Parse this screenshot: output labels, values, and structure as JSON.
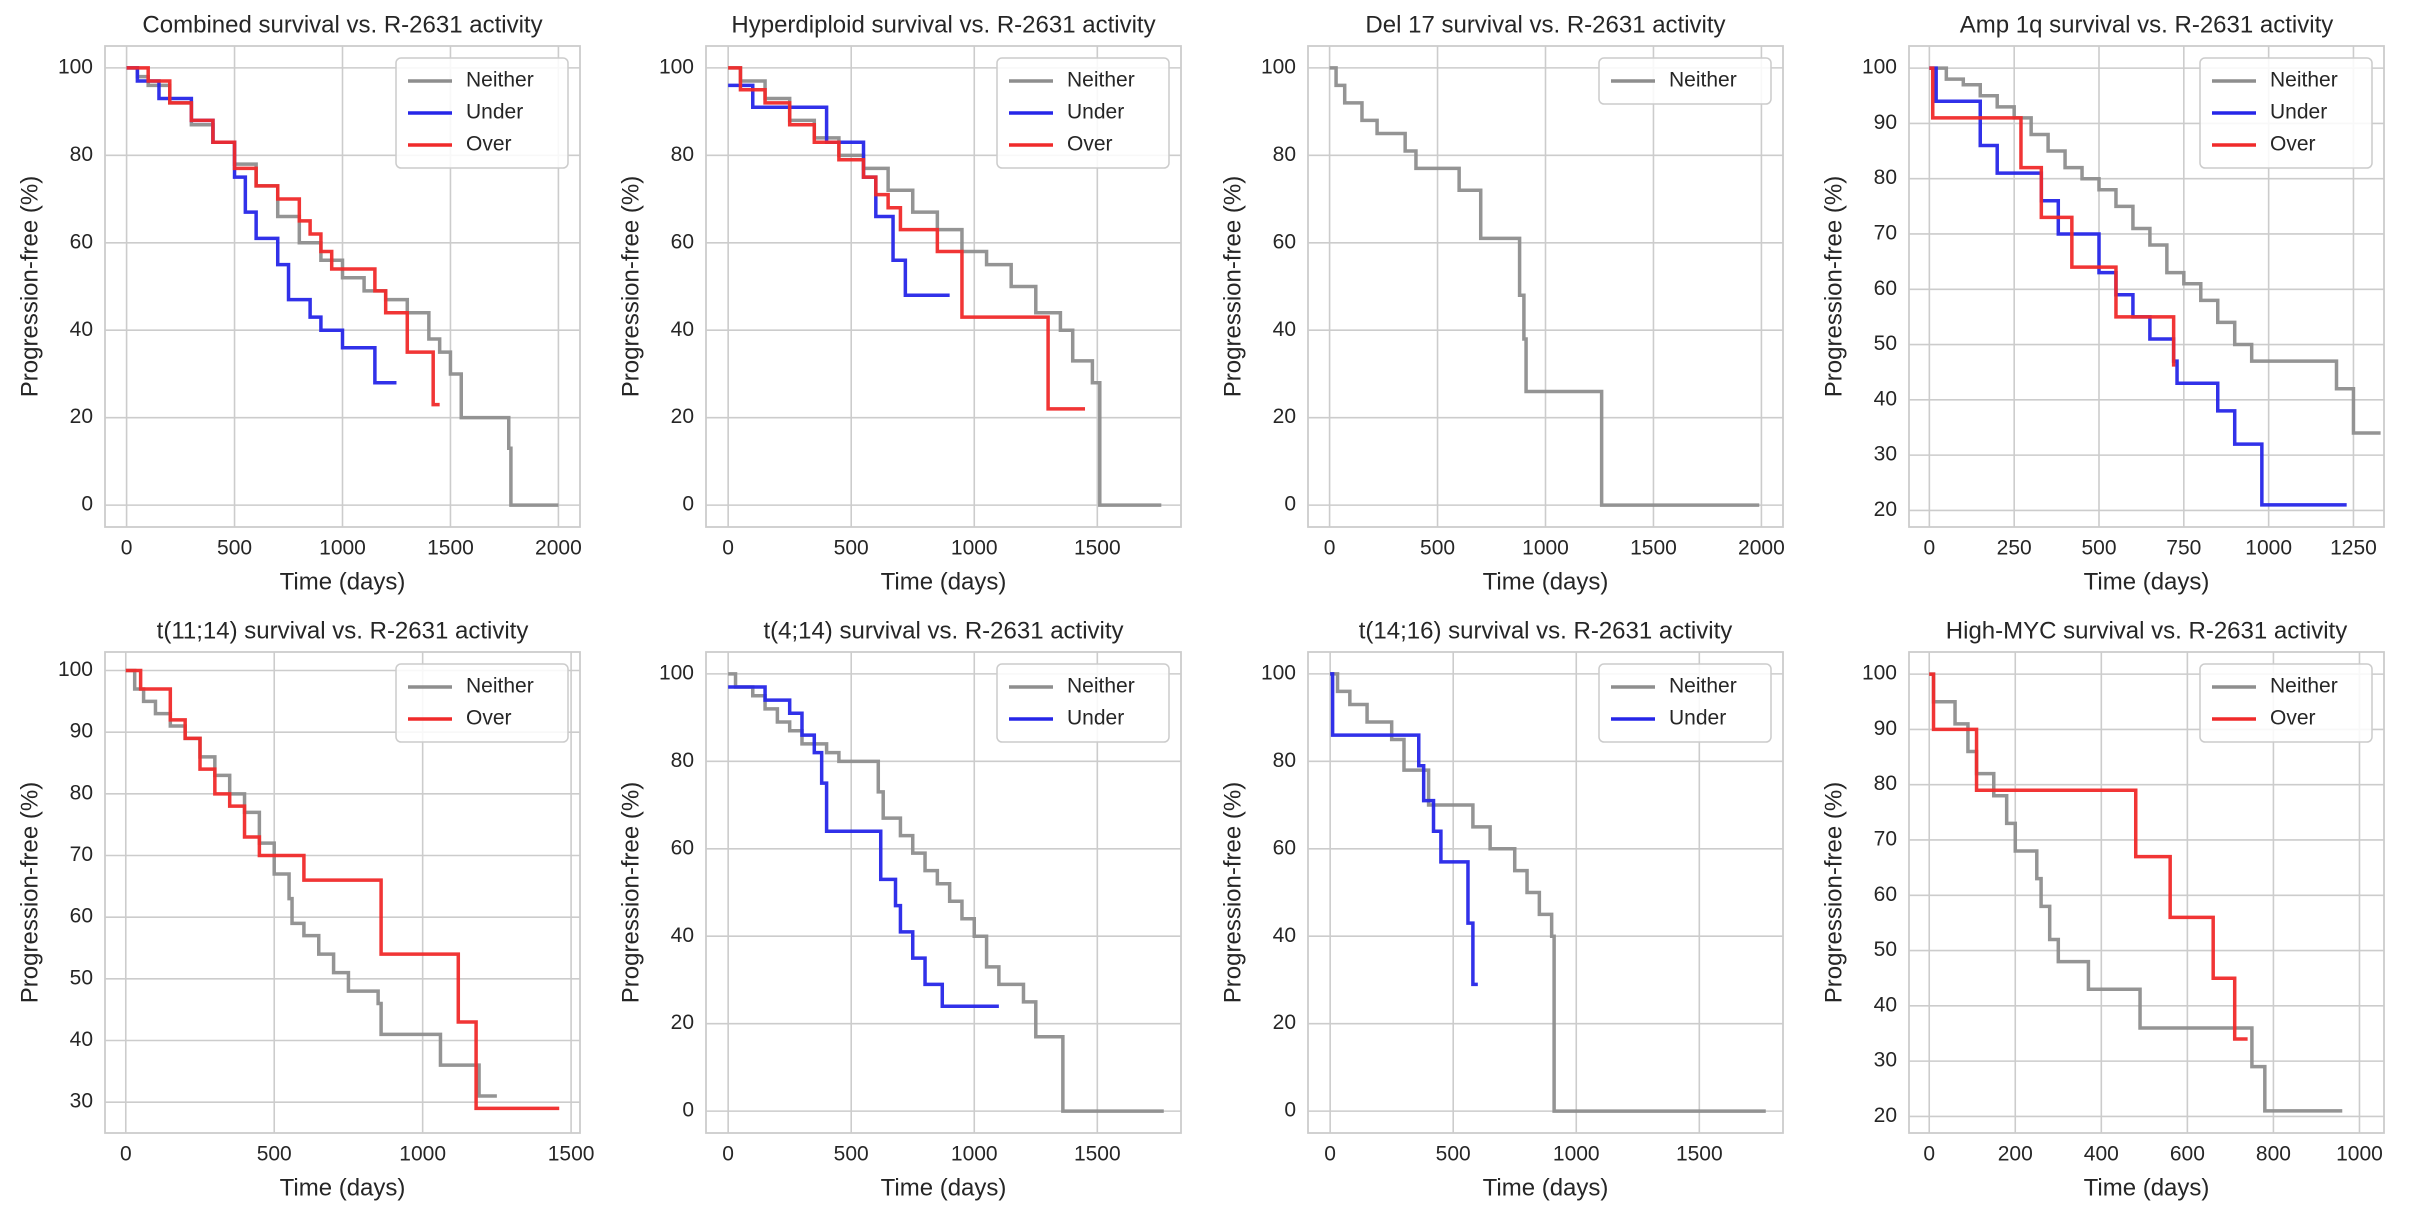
{
  "chart_data": [
    {
      "type": "step",
      "title": "Combined survival vs. R-2631 activity",
      "xlabel": "Time (days)",
      "ylabel": "Progression-free (%)",
      "xlim": [
        -100,
        2100
      ],
      "ylim": [
        -5,
        105
      ],
      "xticks": [
        0,
        500,
        1000,
        1500,
        2000
      ],
      "yticks": [
        0,
        20,
        40,
        60,
        80,
        100
      ],
      "grid": true,
      "legend": "upper right",
      "series": [
        {
          "name": "Neither",
          "color": "#8e8e8e",
          "x": [
            0,
            50,
            100,
            200,
            300,
            400,
            500,
            600,
            700,
            800,
            900,
            1000,
            1100,
            1200,
            1300,
            1400,
            1450,
            1500,
            1550,
            1770,
            1780,
            2000
          ],
          "values": [
            100,
            98,
            96,
            92,
            87,
            83,
            78,
            73,
            66,
            60,
            56,
            52,
            49,
            47,
            44,
            38,
            35,
            30,
            20,
            13,
            0,
            0
          ]
        },
        {
          "name": "Under",
          "color": "#2626e8",
          "x": [
            0,
            50,
            150,
            300,
            400,
            500,
            550,
            600,
            700,
            750,
            850,
            900,
            1000,
            1150,
            1250
          ],
          "values": [
            100,
            97,
            93,
            88,
            83,
            75,
            67,
            61,
            55,
            47,
            43,
            40,
            36,
            28,
            28
          ]
        },
        {
          "name": "Over",
          "color": "#f02a2a",
          "x": [
            0,
            100,
            200,
            300,
            400,
            500,
            600,
            700,
            800,
            850,
            900,
            950,
            1150,
            1200,
            1300,
            1420,
            1450
          ],
          "values": [
            100,
            97,
            92,
            88,
            83,
            77,
            73,
            70,
            65,
            62,
            58,
            54,
            49,
            44,
            35,
            23,
            23
          ]
        }
      ]
    },
    {
      "type": "step",
      "title": "Hyperdiploid survival vs. R-2631 activity",
      "xlabel": "Time (days)",
      "ylabel": "Progression-free (%)",
      "xlim": [
        -90,
        1840
      ],
      "ylim": [
        -5,
        105
      ],
      "xticks": [
        0,
        500,
        1000,
        1500
      ],
      "yticks": [
        0,
        20,
        40,
        60,
        80,
        100
      ],
      "grid": true,
      "legend": "upper right",
      "series": [
        {
          "name": "Neither",
          "color": "#8e8e8e",
          "x": [
            0,
            50,
            150,
            250,
            350,
            450,
            550,
            650,
            750,
            850,
            950,
            1050,
            1150,
            1250,
            1350,
            1400,
            1480,
            1510,
            1760
          ],
          "values": [
            100,
            97,
            93,
            88,
            84,
            80,
            77,
            72,
            67,
            63,
            58,
            55,
            50,
            44,
            40,
            33,
            28,
            0,
            0
          ]
        },
        {
          "name": "Under",
          "color": "#2626e8",
          "x": [
            0,
            100,
            400,
            550,
            600,
            670,
            720,
            900
          ],
          "values": [
            96,
            91,
            83,
            75,
            66,
            56,
            48,
            48
          ]
        },
        {
          "name": "Over",
          "color": "#f02a2a",
          "x": [
            0,
            50,
            150,
            250,
            350,
            450,
            550,
            600,
            650,
            700,
            850,
            950,
            1300,
            1450
          ],
          "values": [
            100,
            95,
            92,
            87,
            83,
            79,
            75,
            71,
            68,
            63,
            58,
            43,
            22,
            22
          ]
        }
      ]
    },
    {
      "type": "step",
      "title": "Del 17 survival vs. R-2631 activity",
      "xlabel": "Time (days)",
      "ylabel": "Progression-free (%)",
      "xlim": [
        -100,
        2100
      ],
      "ylim": [
        -5,
        105
      ],
      "xticks": [
        0,
        500,
        1000,
        1500,
        2000
      ],
      "yticks": [
        0,
        20,
        40,
        60,
        80,
        100
      ],
      "grid": true,
      "legend": "upper right",
      "series": [
        {
          "name": "Neither",
          "color": "#8e8e8e",
          "x": [
            0,
            30,
            70,
            150,
            220,
            350,
            400,
            600,
            700,
            850,
            880,
            900,
            910,
            1250,
            1260,
            1990
          ],
          "values": [
            100,
            96,
            92,
            88,
            85,
            81,
            77,
            72,
            61,
            61,
            48,
            38,
            26,
            26,
            0,
            0
          ]
        }
      ]
    },
    {
      "type": "step",
      "title": "Amp 1q survival vs. R-2631 activity",
      "xlabel": "Time (days)",
      "ylabel": "Progression-free (%)",
      "xlim": [
        -60,
        1340
      ],
      "ylim": [
        17,
        104
      ],
      "xticks": [
        0,
        250,
        500,
        750,
        1000,
        1250
      ],
      "yticks": [
        20,
        30,
        40,
        50,
        60,
        70,
        80,
        90,
        100
      ],
      "grid": true,
      "legend": "upper right",
      "series": [
        {
          "name": "Neither",
          "color": "#8e8e8e",
          "x": [
            0,
            50,
            100,
            150,
            200,
            250,
            300,
            350,
            400,
            450,
            500,
            550,
            600,
            650,
            700,
            750,
            800,
            850,
            900,
            950,
            1200,
            1240,
            1250,
            1330
          ],
          "values": [
            100,
            98,
            97,
            95,
            93,
            91,
            88,
            85,
            82,
            80,
            78,
            75,
            71,
            68,
            63,
            61,
            58,
            54,
            50,
            47,
            42,
            42,
            34,
            34
          ]
        },
        {
          "name": "Under",
          "color": "#2626e8",
          "x": [
            0,
            20,
            150,
            200,
            330,
            380,
            500,
            550,
            600,
            650,
            720,
            730,
            850,
            900,
            980,
            1230
          ],
          "values": [
            100,
            94,
            86,
            81,
            76,
            70,
            63,
            59,
            55,
            51,
            47,
            43,
            38,
            32,
            21,
            21
          ]
        },
        {
          "name": "Over",
          "color": "#f02a2a",
          "x": [
            0,
            10,
            270,
            330,
            420,
            550,
            720
          ],
          "values": [
            100,
            91,
            82,
            73,
            64,
            55,
            46
          ]
        }
      ]
    },
    {
      "type": "step",
      "title": "t(11;14) survival vs. R-2631 activity",
      "xlabel": "Time (days)",
      "ylabel": "Progression-free (%)",
      "xlim": [
        -70,
        1530
      ],
      "ylim": [
        25,
        103
      ],
      "xticks": [
        0,
        500,
        1000,
        1500
      ],
      "yticks": [
        30,
        40,
        50,
        60,
        70,
        80,
        90,
        100
      ],
      "grid": true,
      "legend": "upper right",
      "series": [
        {
          "name": "Neither",
          "color": "#8e8e8e",
          "x": [
            0,
            30,
            60,
            100,
            150,
            200,
            250,
            300,
            350,
            400,
            450,
            500,
            550,
            560,
            600,
            650,
            700,
            750,
            850,
            860,
            1060,
            1190,
            1250
          ],
          "values": [
            100,
            97,
            95,
            93,
            91,
            89,
            86,
            83,
            80,
            77,
            72,
            67,
            63,
            59,
            57,
            54,
            51,
            48,
            46,
            41,
            36,
            31,
            31
          ]
        },
        {
          "name": "Over",
          "color": "#f02a2a",
          "x": [
            0,
            50,
            150,
            200,
            250,
            300,
            350,
            400,
            450,
            600,
            860,
            1120,
            1180,
            1460
          ],
          "values": [
            100,
            97,
            92,
            89,
            84,
            80,
            78,
            73,
            70,
            66,
            54,
            43,
            29,
            29
          ]
        }
      ]
    },
    {
      "type": "step",
      "title": "t(4;14) survival vs. R-2631 activity",
      "xlabel": "Time (days)",
      "ylabel": "Progression-free (%)",
      "xlim": [
        -90,
        1840
      ],
      "ylim": [
        -5,
        105
      ],
      "xticks": [
        0,
        500,
        1000,
        1500
      ],
      "yticks": [
        0,
        20,
        40,
        60,
        80,
        100
      ],
      "grid": true,
      "legend": "upper right",
      "series": [
        {
          "name": "Neither",
          "color": "#8e8e8e",
          "x": [
            0,
            30,
            100,
            150,
            200,
            250,
            300,
            400,
            450,
            610,
            630,
            700,
            750,
            800,
            850,
            900,
            950,
            1000,
            1050,
            1100,
            1200,
            1250,
            1360,
            1770
          ],
          "values": [
            100,
            97,
            95,
            92,
            89,
            87,
            84,
            82,
            80,
            73,
            67,
            63,
            59,
            55,
            52,
            48,
            44,
            40,
            33,
            29,
            25,
            17,
            0,
            0
          ]
        },
        {
          "name": "Under",
          "color": "#2626e8",
          "x": [
            0,
            150,
            250,
            300,
            350,
            380,
            400,
            620,
            680,
            700,
            750,
            800,
            870,
            1100
          ],
          "values": [
            97,
            94,
            91,
            86,
            82,
            75,
            64,
            53,
            47,
            41,
            35,
            29,
            24,
            24
          ]
        }
      ]
    },
    {
      "type": "step",
      "title": "t(14;16) survival vs. R-2631 activity",
      "xlabel": "Time (days)",
      "ylabel": "Progression-free (%)",
      "xlim": [
        -90,
        1840
      ],
      "ylim": [
        -5,
        105
      ],
      "xticks": [
        0,
        500,
        1000,
        1500
      ],
      "yticks": [
        0,
        20,
        40,
        60,
        80,
        100
      ],
      "grid": true,
      "legend": "upper right",
      "series": [
        {
          "name": "Neither",
          "color": "#8e8e8e",
          "x": [
            0,
            30,
            80,
            150,
            250,
            300,
            400,
            580,
            650,
            750,
            800,
            850,
            900,
            910,
            1770
          ],
          "values": [
            100,
            96,
            93,
            89,
            85,
            78,
            70,
            65,
            60,
            55,
            50,
            45,
            40,
            0,
            0
          ]
        },
        {
          "name": "Under",
          "color": "#2626e8",
          "x": [
            0,
            10,
            360,
            380,
            420,
            450,
            560,
            580,
            600
          ],
          "values": [
            100,
            86,
            79,
            71,
            64,
            57,
            43,
            29,
            29
          ]
        }
      ]
    },
    {
      "type": "step",
      "title": "High-MYC survival vs. R-2631 activity",
      "xlabel": "Time (days)",
      "ylabel": "Progression-free (%)",
      "xlim": [
        -47,
        1057
      ],
      "ylim": [
        17,
        104
      ],
      "xticks": [
        0,
        200,
        400,
        600,
        800,
        1000
      ],
      "yticks": [
        20,
        30,
        40,
        50,
        60,
        70,
        80,
        90,
        100
      ],
      "grid": true,
      "legend": "upper right",
      "series": [
        {
          "name": "Neither",
          "color": "#8e8e8e",
          "x": [
            0,
            10,
            60,
            90,
            110,
            150,
            180,
            200,
            250,
            260,
            280,
            300,
            370,
            490,
            750,
            780,
            960
          ],
          "values": [
            100,
            95,
            91,
            86,
            82,
            78,
            73,
            68,
            63,
            58,
            52,
            48,
            43,
            36,
            29,
            21,
            21
          ]
        },
        {
          "name": "Over",
          "color": "#f02a2a",
          "x": [
            0,
            10,
            110,
            480,
            560,
            660,
            710,
            740
          ],
          "values": [
            100,
            90,
            79,
            67,
            56,
            45,
            34,
            34
          ]
        }
      ]
    }
  ]
}
